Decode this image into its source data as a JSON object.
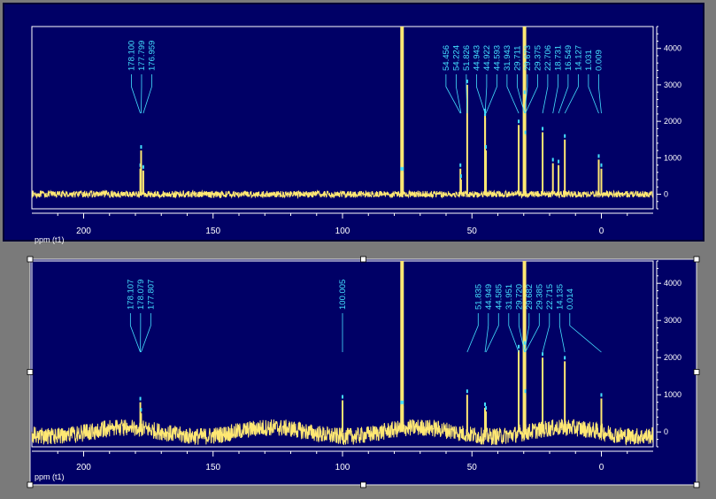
{
  "theme": {
    "background": "#7a7a7a",
    "panel_fill": "#000066",
    "frame": "#ffffff",
    "spectrum": "#ffe873",
    "peak_label": "#44e0ff"
  },
  "chart_data": [
    {
      "type": "line",
      "title": "",
      "xlabel": "ppm (t1)",
      "ylabel": "",
      "xlim": [
        220,
        -20
      ],
      "ylim": [
        -400,
        4600
      ],
      "x_ticks": [
        200,
        150,
        100,
        50,
        0
      ],
      "y_ticks": [
        0,
        1000,
        2000,
        3000,
        4000
      ],
      "grid": false,
      "x_reversed": true,
      "noise_level": 90,
      "label_groups": [
        {
          "labels": [
            "178.100",
            "177.799",
            "176.959"
          ],
          "peaks": [
            178.1,
            177.8,
            176.96
          ]
        },
        {
          "labels": [
            "54.456",
            "54.224",
            "51.826",
            "44.943",
            "44.922",
            "44.593",
            "31.943",
            "29.711",
            "29.673",
            "29.375",
            "22.706",
            "18.731",
            "16.549",
            "14.127",
            "1.031",
            "0.009"
          ],
          "peaks": [
            54.46,
            54.22,
            51.83,
            44.94,
            44.92,
            44.59,
            31.94,
            29.71,
            29.67,
            29.38,
            22.71,
            18.73,
            16.55,
            14.13,
            1.03,
            0.01
          ]
        }
      ],
      "peaks": [
        {
          "ppm": 178.1,
          "height": 700
        },
        {
          "ppm": 177.8,
          "height": 1200
        },
        {
          "ppm": 176.96,
          "height": 650
        },
        {
          "ppm": 77.0,
          "height": 4600
        },
        {
          "ppm": 76.7,
          "height": 600
        },
        {
          "ppm": 77.3,
          "height": 600
        },
        {
          "ppm": 54.46,
          "height": 700
        },
        {
          "ppm": 54.22,
          "height": 400
        },
        {
          "ppm": 51.83,
          "height": 3000
        },
        {
          "ppm": 44.94,
          "height": 2200
        },
        {
          "ppm": 44.92,
          "height": 2100
        },
        {
          "ppm": 44.59,
          "height": 1200
        },
        {
          "ppm": 31.94,
          "height": 1900
        },
        {
          "ppm": 29.71,
          "height": 4600
        },
        {
          "ppm": 29.67,
          "height": 2700
        },
        {
          "ppm": 29.38,
          "height": 1600
        },
        {
          "ppm": 22.71,
          "height": 1700
        },
        {
          "ppm": 18.73,
          "height": 850
        },
        {
          "ppm": 16.55,
          "height": 800
        },
        {
          "ppm": 14.13,
          "height": 1500
        },
        {
          "ppm": 1.03,
          "height": 950
        },
        {
          "ppm": 0.01,
          "height": 700
        }
      ]
    },
    {
      "type": "line",
      "title": "",
      "xlabel": "ppm (t1)",
      "ylabel": "",
      "xlim": [
        220,
        -20
      ],
      "ylim": [
        -400,
        4600
      ],
      "x_ticks": [
        200,
        150,
        100,
        50,
        0
      ],
      "y_ticks": [
        0,
        1000,
        2000,
        3000,
        4000
      ],
      "grid": false,
      "x_reversed": true,
      "noise_level": 230,
      "label_groups": [
        {
          "labels": [
            "178.107",
            "178.079",
            "177.807"
          ],
          "peaks": [
            178.11,
            178.08,
            177.81
          ]
        },
        {
          "labels": [
            "100.005"
          ],
          "peaks": [
            100.0
          ]
        },
        {
          "labels": [
            "51.835",
            "44.949",
            "44.585",
            "31.951",
            "29.720",
            "29.682",
            "29.385",
            "22.715",
            "14.135",
            "0.014"
          ],
          "peaks": [
            51.84,
            44.95,
            44.59,
            31.95,
            29.72,
            29.68,
            29.39,
            22.72,
            14.14,
            0.01
          ]
        }
      ],
      "peaks": [
        {
          "ppm": 178.1,
          "height": 800
        },
        {
          "ppm": 177.81,
          "height": 500
        },
        {
          "ppm": 100.0,
          "height": 850
        },
        {
          "ppm": 77.0,
          "height": 4600
        },
        {
          "ppm": 76.7,
          "height": 700
        },
        {
          "ppm": 77.3,
          "height": 700
        },
        {
          "ppm": 51.84,
          "height": 1000
        },
        {
          "ppm": 44.95,
          "height": 650
        },
        {
          "ppm": 44.59,
          "height": 550
        },
        {
          "ppm": 31.95,
          "height": 2200
        },
        {
          "ppm": 29.72,
          "height": 4600
        },
        {
          "ppm": 29.68,
          "height": 2300
        },
        {
          "ppm": 29.39,
          "height": 1000
        },
        {
          "ppm": 22.72,
          "height": 2000
        },
        {
          "ppm": 14.14,
          "height": 1900
        },
        {
          "ppm": 0.01,
          "height": 900
        }
      ]
    }
  ]
}
